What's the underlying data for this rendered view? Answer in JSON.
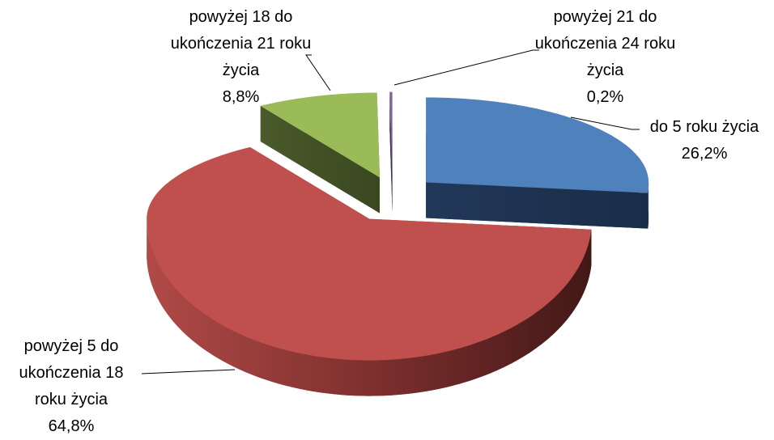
{
  "chart_data": {
    "type": "pie3d",
    "categories": [
      "do 5 roku życia",
      "powyżej 5 do ukończenia 18 roku życia",
      "powyżej 18 do ukończenia 21 roku życia",
      "powyżej 21 do ukończenia 24 roku życia"
    ],
    "values": [
      26.2,
      64.8,
      8.8,
      0.2
    ],
    "value_labels": [
      "26,2%",
      "64,8%",
      "8,8%",
      "0,2%"
    ],
    "colors": [
      "#4f81bd",
      "#c0504d",
      "#9bbb59",
      "#8064a2"
    ]
  }
}
